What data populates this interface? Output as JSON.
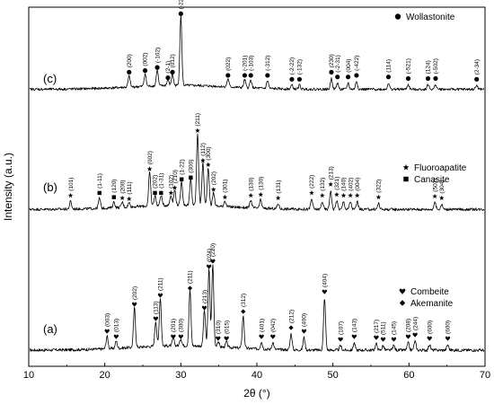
{
  "chart_data": {
    "type": "line",
    "xlabel": "2θ (°)",
    "ylabel": "Intensity (a.u.)",
    "xlim": [
      10,
      70
    ],
    "xticks": [
      10,
      20,
      30,
      40,
      50,
      60,
      70
    ],
    "y_tick_labels": false,
    "series": [
      {
        "id": "a",
        "label": "(a)",
        "legend": [
          {
            "symbol": "heart",
            "text": "Combeite"
          },
          {
            "symbol": "diamond",
            "text": "Akemanite"
          }
        ],
        "peaks": [
          {
            "x": 20.3,
            "h": 14,
            "hkl": "(003)",
            "symbol": "heart"
          },
          {
            "x": 21.5,
            "h": 8,
            "hkl": "(013)",
            "symbol": "heart"
          },
          {
            "x": 23.9,
            "h": 44,
            "hkl": "(202)",
            "symbol": "heart"
          },
          {
            "x": 26.7,
            "h": 28,
            "hkl": "(113)",
            "symbol": "heart"
          },
          {
            "x": 27.3,
            "h": 54,
            "hkl": "(211)",
            "symbol": "heart"
          },
          {
            "x": 29.0,
            "h": 8,
            "hkl": "(201)",
            "symbol": "heart"
          },
          {
            "x": 30.0,
            "h": 8,
            "hkl": "(300)",
            "symbol": "heart"
          },
          {
            "x": 31.2,
            "h": 62,
            "hkl": "(211)",
            "symbol": "diamond"
          },
          {
            "x": 33.1,
            "h": 40,
            "hkl": "(213)",
            "symbol": "heart"
          },
          {
            "x": 33.7,
            "h": 86,
            "hkl": "(024)",
            "symbol": "heart"
          },
          {
            "x": 34.2,
            "h": 92,
            "hkl": "(220)",
            "symbol": "heart"
          },
          {
            "x": 34.9,
            "h": 6,
            "hkl": "(310)",
            "symbol": "heart"
          },
          {
            "x": 36.0,
            "h": 6,
            "hkl": "(015)",
            "symbol": "heart"
          },
          {
            "x": 38.2,
            "h": 36,
            "hkl": "(312)",
            "symbol": "diamond"
          },
          {
            "x": 40.6,
            "h": 8,
            "hkl": "(401)",
            "symbol": "heart"
          },
          {
            "x": 42.1,
            "h": 8,
            "hkl": "(042)",
            "symbol": "heart"
          },
          {
            "x": 44.5,
            "h": 18,
            "hkl": "(212)",
            "symbol": "diamond"
          },
          {
            "x": 46.2,
            "h": 14,
            "hkl": "(400)",
            "symbol": "heart"
          },
          {
            "x": 48.9,
            "h": 58,
            "hkl": "(404)",
            "symbol": "heart"
          },
          {
            "x": 51.0,
            "h": 5,
            "hkl": "(107)",
            "symbol": "heart"
          },
          {
            "x": 52.8,
            "h": 8,
            "hkl": "(143)",
            "symbol": "heart"
          },
          {
            "x": 55.7,
            "h": 7,
            "hkl": "(217)",
            "symbol": "heart"
          },
          {
            "x": 56.6,
            "h": 5,
            "hkl": "(511)",
            "symbol": "heart"
          },
          {
            "x": 58.0,
            "h": 5,
            "hkl": "(145)",
            "symbol": "heart"
          },
          {
            "x": 59.9,
            "h": 8,
            "hkl": "(208)",
            "symbol": "heart"
          },
          {
            "x": 60.8,
            "h": 10,
            "hkl": "(244)",
            "symbol": "heart"
          },
          {
            "x": 62.7,
            "h": 6,
            "hkl": "(600)",
            "symbol": "heart"
          },
          {
            "x": 65.1,
            "h": 6,
            "hkl": "(600)",
            "symbol": "heart"
          }
        ]
      },
      {
        "id": "b",
        "label": "(b)",
        "legend": [
          {
            "symbol": "star",
            "text": "Fluoroapatite"
          },
          {
            "symbol": "square",
            "text": "Canasite"
          }
        ],
        "peaks": [
          {
            "x": 15.5,
            "h": 9,
            "hkl": "(101)",
            "symbol": "star"
          },
          {
            "x": 19.3,
            "h": 12,
            "hkl": "(1-11)",
            "symbol": "square"
          },
          {
            "x": 21.2,
            "h": 7,
            "hkl": "(120)",
            "symbol": "square"
          },
          {
            "x": 22.3,
            "h": 6,
            "hkl": "(200)",
            "symbol": "star"
          },
          {
            "x": 23.2,
            "h": 5,
            "hkl": "(111)",
            "symbol": "star"
          },
          {
            "x": 25.9,
            "h": 40,
            "hkl": "(002)",
            "symbol": "star"
          },
          {
            "x": 26.6,
            "h": 12,
            "hkl": "(202)",
            "symbol": "square"
          },
          {
            "x": 27.4,
            "h": 12,
            "hkl": "(1-31)",
            "symbol": "square"
          },
          {
            "x": 28.7,
            "h": 12,
            "hkl": "(102)",
            "symbol": "star"
          },
          {
            "x": 29.2,
            "h": 18,
            "hkl": "(210)",
            "symbol": "star"
          },
          {
            "x": 30.1,
            "h": 28,
            "hkl": "(1-22)",
            "symbol": "square"
          },
          {
            "x": 31.3,
            "h": 30,
            "hkl": "(300)",
            "symbol": "square"
          },
          {
            "x": 32.2,
            "h": 85,
            "hkl": "(211)",
            "symbol": "star"
          },
          {
            "x": 32.9,
            "h": 50,
            "hkl": "(112)",
            "symbol": "star"
          },
          {
            "x": 33.6,
            "h": 45,
            "hkl": "(300)",
            "symbol": "star"
          },
          {
            "x": 34.3,
            "h": 16,
            "hkl": "(202)",
            "symbol": "star"
          },
          {
            "x": 35.8,
            "h": 7,
            "hkl": "(301)",
            "symbol": "star"
          },
          {
            "x": 39.2,
            "h": 9,
            "hkl": "(130)",
            "symbol": "star"
          },
          {
            "x": 40.5,
            "h": 10,
            "hkl": "(130)",
            "symbol": "star"
          },
          {
            "x": 42.8,
            "h": 6,
            "hkl": "(131)",
            "symbol": "star"
          },
          {
            "x": 47.2,
            "h": 12,
            "hkl": "(222)",
            "symbol": "star"
          },
          {
            "x": 48.6,
            "h": 9,
            "hkl": "(132)",
            "symbol": "star"
          },
          {
            "x": 49.7,
            "h": 22,
            "hkl": "(213)",
            "symbol": "star"
          },
          {
            "x": 50.5,
            "h": 10,
            "hkl": "(321)",
            "symbol": "star"
          },
          {
            "x": 51.4,
            "h": 9,
            "hkl": "(140)",
            "symbol": "star"
          },
          {
            "x": 52.3,
            "h": 9,
            "hkl": "(402)",
            "symbol": "star"
          },
          {
            "x": 53.2,
            "h": 9,
            "hkl": "(004)",
            "symbol": "star"
          },
          {
            "x": 56.0,
            "h": 7,
            "hkl": "(322)",
            "symbol": "star"
          },
          {
            "x": 63.4,
            "h": 8,
            "hkl": "(502)",
            "symbol": "star"
          },
          {
            "x": 64.3,
            "h": 6,
            "hkl": "(304)",
            "symbol": "star"
          }
        ]
      },
      {
        "id": "c",
        "label": "(c)",
        "legend": [
          {
            "symbol": "circle",
            "text": "Wollastonite"
          }
        ],
        "peaks": [
          {
            "x": 23.2,
            "h": 14,
            "hkl": "(200)",
            "symbol": "circle"
          },
          {
            "x": 25.3,
            "h": 16,
            "hkl": "(002)",
            "symbol": "circle"
          },
          {
            "x": 26.9,
            "h": 20,
            "hkl": "(-102)",
            "symbol": "circle"
          },
          {
            "x": 28.3,
            "h": 7,
            "hkl": "(2-1)",
            "symbol": "circle"
          },
          {
            "x": 28.9,
            "h": 14,
            "hkl": "(012)",
            "symbol": "circle"
          },
          {
            "x": 30.0,
            "h": 88,
            "hkl": "(-220)",
            "symbol": "circle"
          },
          {
            "x": 36.2,
            "h": 10,
            "hkl": "(022)",
            "symbol": "circle"
          },
          {
            "x": 38.4,
            "h": 10,
            "hkl": "(-201)",
            "symbol": "circle"
          },
          {
            "x": 39.2,
            "h": 10,
            "hkl": "(-103)",
            "symbol": "circle"
          },
          {
            "x": 41.4,
            "h": 10,
            "hkl": "(-312)",
            "symbol": "circle"
          },
          {
            "x": 44.6,
            "h": 5,
            "hkl": "(-2-22)",
            "symbol": "circle"
          },
          {
            "x": 45.6,
            "h": 5,
            "hkl": "(-132)",
            "symbol": "circle"
          },
          {
            "x": 49.8,
            "h": 14,
            "hkl": "(230)",
            "symbol": "circle"
          },
          {
            "x": 50.6,
            "h": 8,
            "hkl": "(-2-31)",
            "symbol": "circle"
          },
          {
            "x": 52.0,
            "h": 8,
            "hkl": "(004)",
            "symbol": "circle"
          },
          {
            "x": 53.1,
            "h": 10,
            "hkl": "(-422)",
            "symbol": "circle"
          },
          {
            "x": 57.3,
            "h": 8,
            "hkl": "(114)",
            "symbol": "circle"
          },
          {
            "x": 59.9,
            "h": 6,
            "hkl": "(-521)",
            "symbol": "circle"
          },
          {
            "x": 62.5,
            "h": 6,
            "hkl": "(124)",
            "symbol": "circle"
          },
          {
            "x": 63.5,
            "h": 6,
            "hkl": "(-502)",
            "symbol": "circle"
          },
          {
            "x": 68.9,
            "h": 5,
            "hkl": "(2-34)",
            "symbol": "circle"
          }
        ]
      }
    ]
  }
}
